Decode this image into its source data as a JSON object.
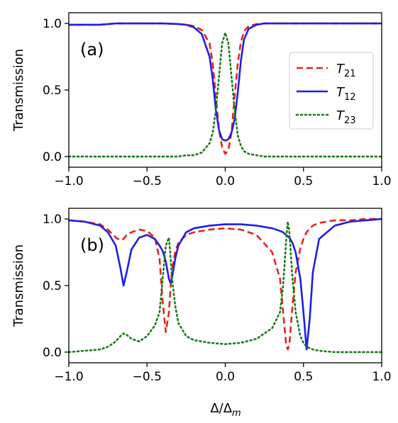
{
  "xlabel": "Δ/Δ",
  "xlabel_sub": "m",
  "colors": {
    "T21": "#e8221c",
    "T12": "#1f1fe6",
    "T23": "#1a7a1a"
  },
  "chart_data": [
    {
      "type": "line",
      "panel_label": "(a)",
      "ylabel": "Transmission",
      "xlim": [
        -1.0,
        1.0
      ],
      "ylim": [
        -0.08,
        1.08
      ],
      "xticks": [
        -1.0,
        -0.5,
        0.0,
        0.5,
        1.0
      ],
      "xtick_labels": [
        "−1.0",
        "−0.5",
        "0.0",
        "0.5",
        "1.0"
      ],
      "yticks": [
        0.0,
        0.5,
        1.0
      ],
      "ytick_labels": [
        "0.0",
        "0.5",
        "1.0"
      ],
      "legend": {
        "placement": "right",
        "entries": [
          {
            "base": "T",
            "sub": "21",
            "color": "#e8221c",
            "style": "dashed"
          },
          {
            "base": "T",
            "sub": "12",
            "color": "#1f1fe6",
            "style": "solid"
          },
          {
            "base": "T",
            "sub": "23",
            "color": "#1a7a1a",
            "style": "dotted"
          }
        ]
      },
      "x": [
        -1.0,
        -0.9,
        -0.8,
        -0.7,
        -0.6,
        -0.5,
        -0.4,
        -0.3,
        -0.25,
        -0.2,
        -0.15,
        -0.1,
        -0.08,
        -0.06,
        -0.04,
        -0.02,
        0.0,
        0.02,
        0.04,
        0.06,
        0.08,
        0.1,
        0.12,
        0.15,
        0.2,
        0.25,
        0.3,
        0.4,
        0.5,
        0.6,
        0.7,
        0.8,
        0.9,
        1.0
      ],
      "series": [
        {
          "name": "T21",
          "color": "#e8221c",
          "style": "dashed",
          "values": [
            0.99,
            0.99,
            0.99,
            1.0,
            1.0,
            1.0,
            1.0,
            0.995,
            0.99,
            0.98,
            0.95,
            0.85,
            0.7,
            0.45,
            0.2,
            0.07,
            0.02,
            0.05,
            0.18,
            0.45,
            0.7,
            0.86,
            0.94,
            0.98,
            0.995,
            1.0,
            1.0,
            1.0,
            1.0,
            1.0,
            1.0,
            1.0,
            1.0,
            1.0
          ]
        },
        {
          "name": "T12",
          "color": "#1f1fe6",
          "style": "solid",
          "values": [
            0.99,
            0.99,
            0.99,
            1.0,
            1.0,
            1.0,
            1.0,
            0.995,
            0.99,
            0.97,
            0.92,
            0.75,
            0.58,
            0.35,
            0.2,
            0.13,
            0.12,
            0.13,
            0.18,
            0.28,
            0.48,
            0.72,
            0.88,
            0.96,
            0.99,
            1.0,
            1.0,
            1.0,
            1.0,
            1.0,
            1.0,
            1.0,
            1.0,
            1.0
          ]
        },
        {
          "name": "T23",
          "color": "#1a7a1a",
          "style": "dotted",
          "values": [
            0.0,
            0.0,
            0.0,
            0.0,
            0.0,
            0.0,
            0.0,
            0.0,
            0.01,
            0.01,
            0.03,
            0.1,
            0.18,
            0.35,
            0.6,
            0.85,
            0.93,
            0.85,
            0.6,
            0.35,
            0.16,
            0.08,
            0.04,
            0.02,
            0.01,
            0.0,
            0.0,
            0.0,
            0.0,
            0.0,
            0.0,
            0.0,
            0.0,
            0.0
          ]
        }
      ]
    },
    {
      "type": "line",
      "panel_label": "(b)",
      "ylabel": "Transmission",
      "xlim": [
        -1.0,
        1.0
      ],
      "ylim": [
        -0.08,
        1.08
      ],
      "xticks": [
        -1.0,
        -0.5,
        0.0,
        0.5,
        1.0
      ],
      "xtick_labels": [
        "−1.0",
        "−0.5",
        "0.0",
        "0.5",
        "1.0"
      ],
      "yticks": [
        0.0,
        0.5,
        1.0
      ],
      "ytick_labels": [
        "0.0",
        "0.5",
        "1.0"
      ],
      "x": [
        -1.0,
        -0.9,
        -0.8,
        -0.75,
        -0.7,
        -0.67,
        -0.65,
        -0.63,
        -0.6,
        -0.55,
        -0.5,
        -0.45,
        -0.42,
        -0.4,
        -0.38,
        -0.36,
        -0.35,
        -0.34,
        -0.32,
        -0.3,
        -0.25,
        -0.2,
        -0.1,
        0.0,
        0.1,
        0.2,
        0.3,
        0.35,
        0.37,
        0.39,
        0.4,
        0.41,
        0.43,
        0.45,
        0.48,
        0.5,
        0.52,
        0.54,
        0.56,
        0.6,
        0.7,
        0.8,
        0.9,
        1.0
      ],
      "series": [
        {
          "name": "T21",
          "color": "#e8221c",
          "style": "dashed",
          "values": [
            0.99,
            0.98,
            0.96,
            0.92,
            0.86,
            0.84,
            0.85,
            0.88,
            0.9,
            0.92,
            0.91,
            0.86,
            0.7,
            0.38,
            0.15,
            0.3,
            0.48,
            0.62,
            0.75,
            0.82,
            0.88,
            0.9,
            0.92,
            0.93,
            0.92,
            0.88,
            0.75,
            0.55,
            0.3,
            0.05,
            0.02,
            0.06,
            0.35,
            0.6,
            0.78,
            0.85,
            0.9,
            0.93,
            0.95,
            0.97,
            0.99,
            0.99,
            1.0,
            1.0
          ]
        },
        {
          "name": "T12",
          "color": "#1f1fe6",
          "style": "solid",
          "values": [
            0.99,
            0.98,
            0.95,
            0.9,
            0.8,
            0.63,
            0.5,
            0.6,
            0.77,
            0.86,
            0.88,
            0.85,
            0.8,
            0.76,
            0.68,
            0.55,
            0.52,
            0.56,
            0.7,
            0.8,
            0.9,
            0.93,
            0.95,
            0.96,
            0.96,
            0.95,
            0.93,
            0.91,
            0.9,
            0.88,
            0.87,
            0.86,
            0.82,
            0.75,
            0.55,
            0.3,
            0.02,
            0.25,
            0.6,
            0.85,
            0.95,
            0.98,
            0.99,
            1.0
          ]
        },
        {
          "name": "T23",
          "color": "#1a7a1a",
          "style": "dotted",
          "values": [
            0.0,
            0.01,
            0.02,
            0.04,
            0.08,
            0.12,
            0.14,
            0.13,
            0.1,
            0.08,
            0.12,
            0.2,
            0.3,
            0.55,
            0.8,
            0.86,
            0.72,
            0.55,
            0.35,
            0.22,
            0.12,
            0.09,
            0.07,
            0.06,
            0.07,
            0.1,
            0.18,
            0.3,
            0.5,
            0.85,
            0.98,
            0.9,
            0.55,
            0.3,
            0.12,
            0.07,
            0.04,
            0.03,
            0.02,
            0.01,
            0.0,
            0.0,
            0.0,
            0.0
          ]
        }
      ]
    }
  ]
}
